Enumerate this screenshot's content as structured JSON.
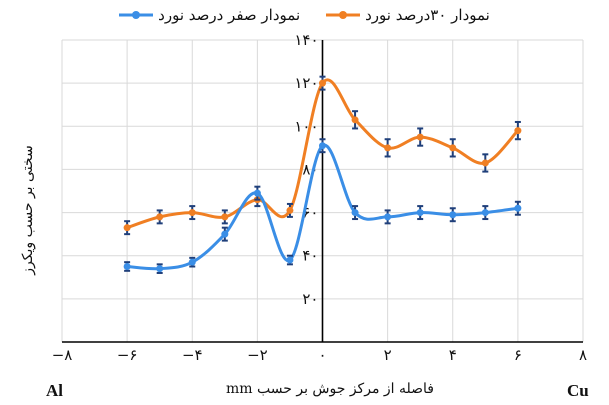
{
  "chart_data": {
    "type": "line",
    "series": [
      {
        "name": "نمودار ۳۰درصد نورد",
        "color": "#F07F23",
        "x": [
          -6,
          -5,
          -4,
          -3,
          -2,
          -1,
          0,
          1,
          2,
          3,
          4,
          5,
          6
        ],
        "values": [
          53,
          58,
          60,
          58,
          66,
          61,
          120,
          103,
          90,
          95,
          90,
          83,
          98
        ],
        "errors": [
          3,
          3,
          3,
          3,
          3,
          3,
          3,
          4,
          4,
          4,
          4,
          4,
          4
        ]
      },
      {
        "name": "نمودار صفر درصد نورد",
        "color": "#3A8EE6",
        "x": [
          -6,
          -5,
          -4,
          -3,
          -2,
          -1,
          0,
          1,
          2,
          3,
          4,
          5,
          6
        ],
        "values": [
          35,
          34,
          37,
          50,
          69,
          38,
          91,
          60,
          58,
          60,
          59,
          60,
          62
        ],
        "errors": [
          2,
          2,
          2,
          3,
          3,
          2,
          3,
          3,
          3,
          3,
          3,
          3,
          3
        ]
      }
    ],
    "xlim": [
      -8,
      8
    ],
    "ylim": [
      0,
      140
    ],
    "xticks": [
      -8,
      -6,
      -4,
      -2,
      0,
      2,
      4,
      6,
      8
    ],
    "xtick_labels": [
      "−۸",
      "−۶",
      "−۴",
      "−۲",
      "۰",
      "۲",
      "۴",
      "۶",
      "۸"
    ],
    "yticks": [
      20,
      40,
      60,
      80,
      100,
      120,
      140
    ],
    "ytick_labels": [
      "۲۰",
      "۴۰",
      "۶۰",
      "۸۰",
      "۱۰۰",
      "۱۲۰",
      "۱۴۰"
    ],
    "xlabel": "فاصله از مرکز جوش بر حسب mm",
    "ylabel": "سختی بر حسب ویکرز",
    "left_label": "Al",
    "right_label": "Cu",
    "grid": true,
    "legend_position": "top"
  }
}
